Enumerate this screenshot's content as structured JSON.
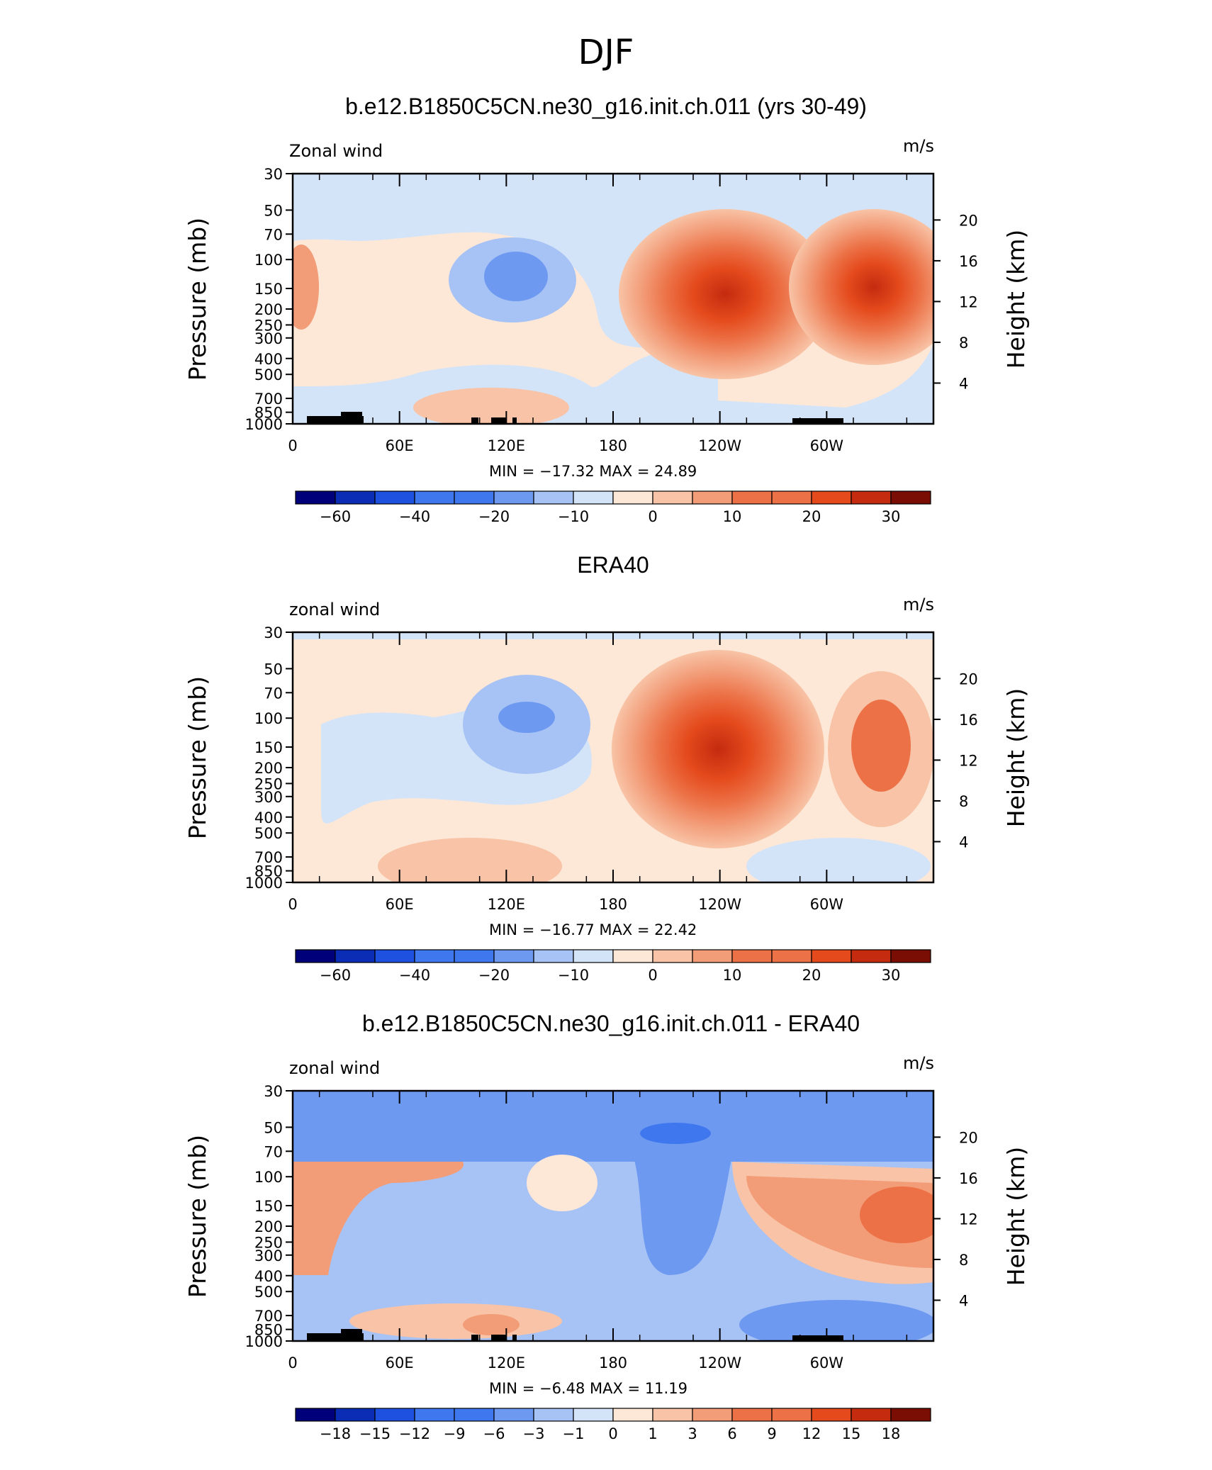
{
  "figure": {
    "title": "DJF",
    "panels": [
      {
        "id": "model",
        "title": "b.e12.B1850C5CN.ne30_g16.init.ch.011 (yrs 30-49)",
        "left_label": "Zonal wind",
        "right_label": "m/s",
        "min_max": "MIN =  −17.32   MAX =   24.89"
      },
      {
        "id": "obs",
        "title": "ERA40",
        "left_label": "zonal wind",
        "right_label": "m/s",
        "min_max": "MIN =  −16.77   MAX =   22.42"
      },
      {
        "id": "diff",
        "title": "b.e12.B1850C5CN.ne30_g16.init.ch.011 - ERA40",
        "left_label": "zonal wind",
        "right_label": "m/s",
        "min_max": "MIN =   −6.48   MAX =   11.19"
      }
    ],
    "y_axis_left": "Pressure  (mb)",
    "y_axis_right": "Height  (km)",
    "pressure_ticks": [
      "30",
      "50",
      "70",
      "100",
      "150",
      "200",
      "250",
      "300",
      "400",
      "500",
      "700",
      "850",
      "1000"
    ],
    "height_ticks": [
      "20",
      "16",
      "12",
      "8",
      "4"
    ],
    "lon_ticks": [
      "0",
      "60E",
      "120E",
      "180",
      "120W",
      "60W"
    ]
  },
  "chart_data": [
    {
      "type": "heatmap",
      "title": "b.e12.B1850C5CN.ne30_g16.init.ch.011 (yrs 30-49)",
      "variable": "Zonal wind",
      "units": "m/s",
      "x": "longitude",
      "y": "pressure (mb)",
      "ylim": [
        1000,
        30
      ],
      "min": -17.32,
      "max": 24.89,
      "colorbar_labels": [
        "−60",
        "−40",
        "−20",
        "−10",
        "0",
        "10",
        "20",
        "30"
      ],
      "features": [
        {
          "lon": 120,
          "p": 150,
          "value": -15
        },
        {
          "lon": -110,
          "p": 150,
          "value": 24
        },
        {
          "lon": -28,
          "p": 150,
          "value": 22
        },
        {
          "lon": 120,
          "p": 750,
          "value": 8
        }
      ]
    },
    {
      "type": "heatmap",
      "title": "ERA40",
      "variable": "zonal wind",
      "units": "m/s",
      "x": "longitude",
      "y": "pressure (mb)",
      "ylim": [
        1000,
        30
      ],
      "min": -16.77,
      "max": 22.42,
      "colorbar_labels": [
        "−60",
        "−40",
        "−20",
        "−10",
        "0",
        "10",
        "20",
        "30"
      ],
      "features": [
        {
          "lon": 130,
          "p": 120,
          "value": -15
        },
        {
          "lon": -115,
          "p": 150,
          "value": 22
        },
        {
          "lon": -30,
          "p": 150,
          "value": 15
        }
      ]
    },
    {
      "type": "heatmap",
      "title": "b.e12.B1850C5CN.ne30_g16.init.ch.011 - ERA40",
      "variable": "zonal wind",
      "units": "m/s",
      "x": "longitude",
      "y": "pressure (mb)",
      "ylim": [
        1000,
        30
      ],
      "min": -6.48,
      "max": 11.19,
      "colorbar_labels": [
        "−18",
        "−15",
        "−12",
        "−9",
        "−6",
        "−3",
        "−1",
        "0",
        "1",
        "3",
        "6",
        "9",
        "12",
        "15",
        "18"
      ],
      "features": [
        {
          "lon": -145,
          "p": 55,
          "value": -6
        },
        {
          "lon": -15,
          "p": 170,
          "value": 10
        },
        {
          "lon": 10,
          "p": 150,
          "value": 5
        }
      ]
    }
  ],
  "colors": {
    "scale": [
      "#00007a",
      "#0b2cb5",
      "#1f51e0",
      "#3f78ee",
      "#6e99f1",
      "#a7c3f5",
      "#d4e4f8",
      "#fde8d8",
      "#f8c3a6",
      "#f29c78",
      "#ec7146",
      "#e44a1c",
      "#c42b0f",
      "#7a0e05"
    ]
  }
}
